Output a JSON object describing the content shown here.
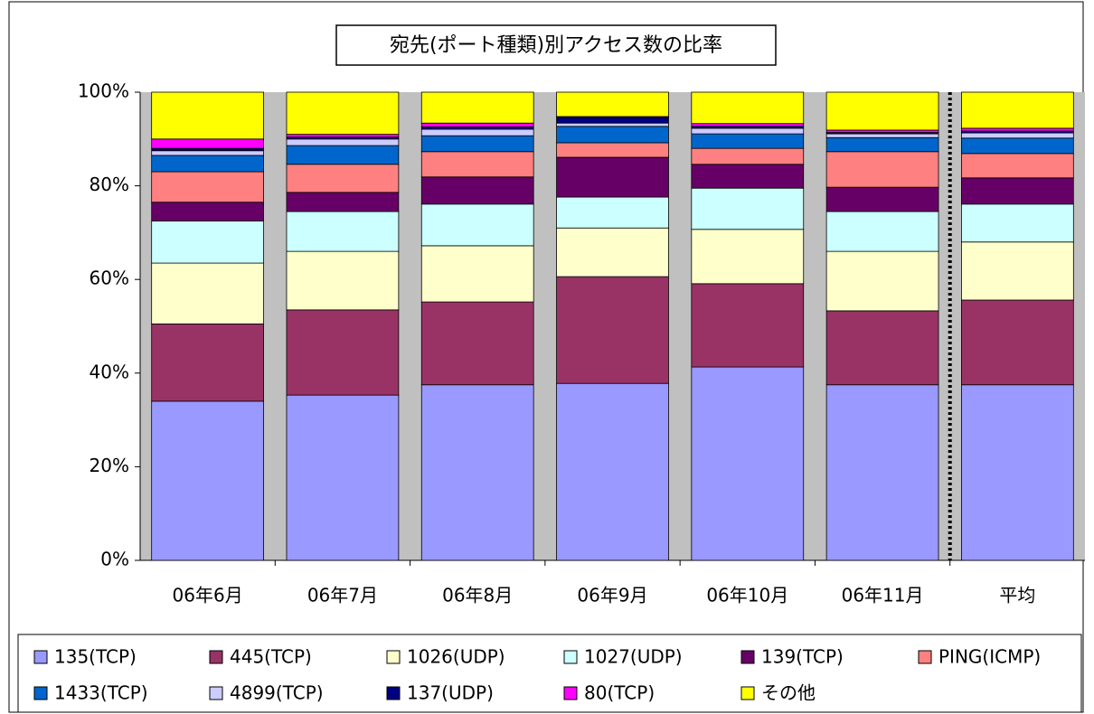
{
  "chart_data": {
    "type": "stacked_bar",
    "title": "宛先(ポート種類)別アクセス数の比率",
    "categories": [
      "06年6月",
      "06年7月",
      "06年8月",
      "06年9月",
      "06年10月",
      "06年11月",
      "平均"
    ],
    "ylim": [
      0,
      100
    ],
    "yticks": [
      {
        "value": 0,
        "label": "0%"
      },
      {
        "value": 20,
        "label": "20%"
      },
      {
        "value": 40,
        "label": "40%"
      },
      {
        "value": 60,
        "label": "60%"
      },
      {
        "value": 80,
        "label": "80%"
      },
      {
        "value": 100,
        "label": "100%"
      }
    ],
    "grid": false,
    "legend": "bottom",
    "series": [
      {
        "name": "135(TCP)",
        "color": "#9999ff",
        "values": [
          34,
          35.3,
          37.5,
          37.8,
          41.3,
          37.5,
          37.5
        ]
      },
      {
        "name": "445(TCP)",
        "color": "#993366",
        "values": [
          16.5,
          18.2,
          17.7,
          22.8,
          17.8,
          15.8,
          18.1
        ]
      },
      {
        "name": "1026(UDP)",
        "color": "#ffffcc",
        "values": [
          13,
          12.5,
          12,
          10.4,
          11.6,
          12.7,
          12.4
        ]
      },
      {
        "name": "1027(UDP)",
        "color": "#ccffff",
        "values": [
          9,
          8.5,
          8.9,
          6.6,
          8.8,
          8.5,
          8.1
        ]
      },
      {
        "name": "139(TCP)",
        "color": "#660066",
        "values": [
          4,
          4.1,
          5.8,
          8.5,
          5.1,
          5.2,
          5.6
        ]
      },
      {
        "name": "PING(ICMP)",
        "color": "#ff8080",
        "values": [
          6.5,
          6,
          5.4,
          3.1,
          3.4,
          7.6,
          5.2
        ]
      },
      {
        "name": "1433(TCP)",
        "color": "#0066cc",
        "values": [
          3.5,
          4,
          3.4,
          3.5,
          3.1,
          3,
          3.3
        ]
      },
      {
        "name": "4899(TCP)",
        "color": "#ccccff",
        "values": [
          1,
          1.4,
          1.4,
          0.7,
          1.2,
          0.8,
          1.1
        ]
      },
      {
        "name": "137(UDP)",
        "color": "#000080",
        "values": [
          0.5,
          0.4,
          0.5,
          1.2,
          0.4,
          0.3,
          0.4
        ]
      },
      {
        "name": "80(TCP)",
        "color": "#ff00ff",
        "values": [
          2,
          0.6,
          0.8,
          0.2,
          0.6,
          0.5,
          0.6
        ]
      },
      {
        "name": "その他",
        "color": "#ffff00",
        "values": [
          10,
          9,
          6.6,
          5.2,
          6.7,
          8.1,
          7.7
        ]
      }
    ]
  }
}
